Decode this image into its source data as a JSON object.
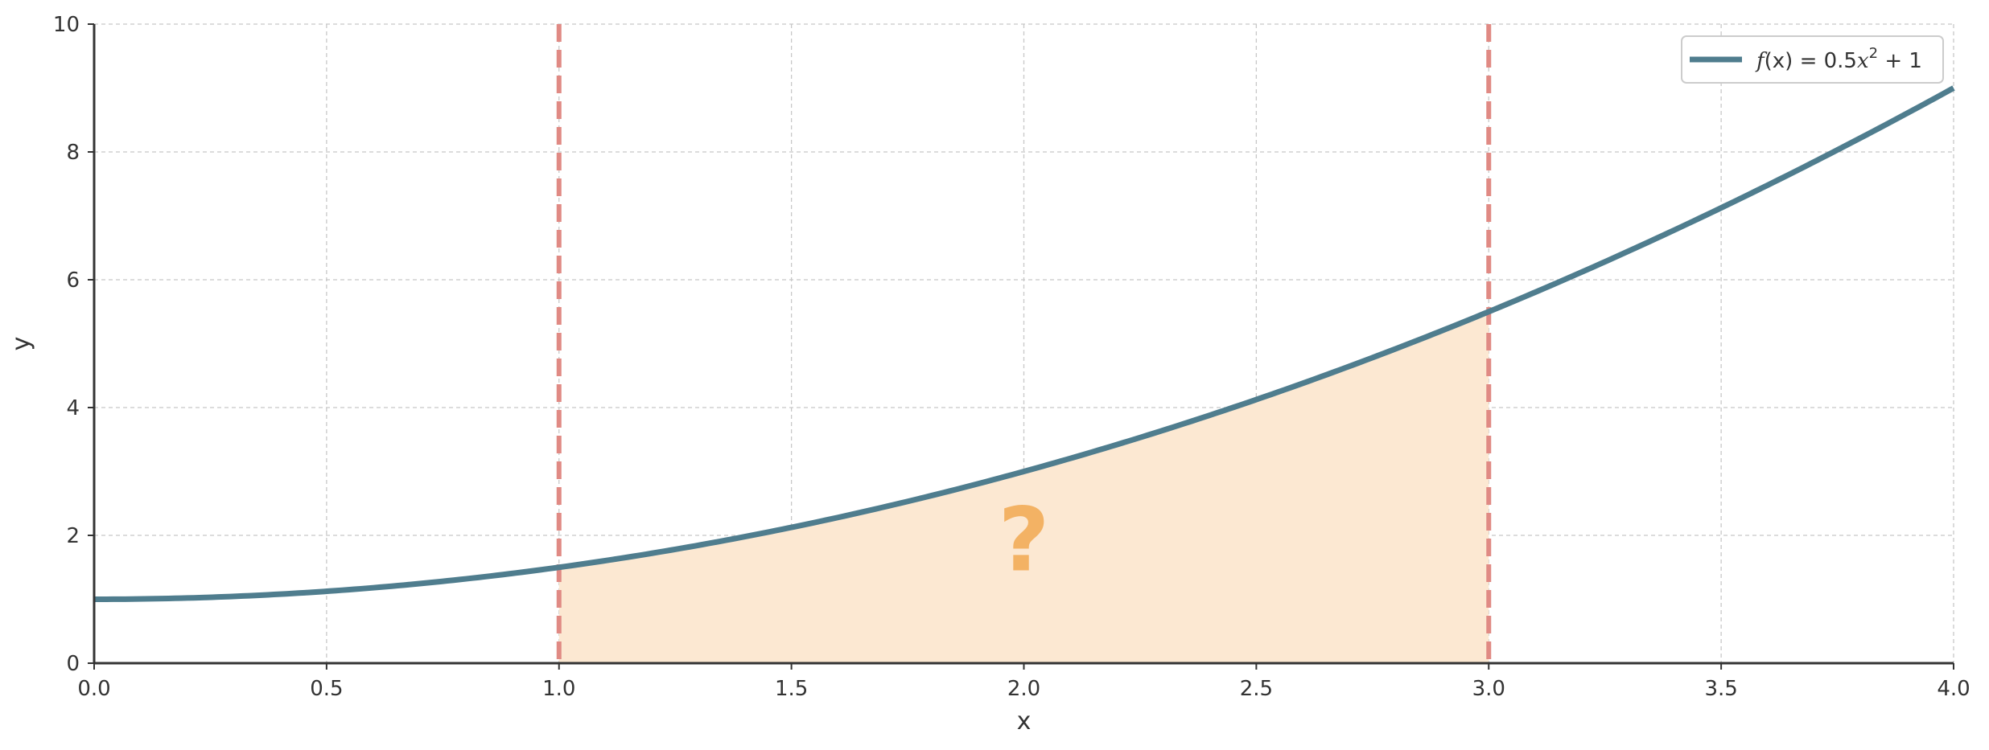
{
  "chart_data": {
    "type": "line",
    "title": "",
    "xlabel": "x",
    "ylabel": "y",
    "xlim": [
      0.0,
      4.0
    ],
    "ylim": [
      0,
      10
    ],
    "x_ticks": [
      "0.0",
      "0.5",
      "1.0",
      "1.5",
      "2.0",
      "2.5",
      "3.0",
      "3.5",
      "4.0"
    ],
    "y_ticks": [
      "0",
      "2",
      "4",
      "6",
      "8",
      "10"
    ],
    "grid": true,
    "legend_position": "top-right",
    "series": [
      {
        "name": "f(x) = 0.5x² + 1",
        "function": "0.5*x^2 + 1",
        "x": [
          0.0,
          0.5,
          1.0,
          1.5,
          2.0,
          2.5,
          3.0,
          3.5,
          4.0
        ],
        "y": [
          1.0,
          1.125,
          1.5,
          2.125,
          3.0,
          4.125,
          5.5,
          7.125,
          9.0
        ],
        "color": "#4f7d8e"
      }
    ],
    "shaded_region": {
      "x_from": 1.0,
      "x_to": 3.0,
      "color": "#fce8d2",
      "label": "?"
    },
    "vertical_lines": [
      {
        "x": 1.0,
        "style": "dashed",
        "color": "#e08a84"
      },
      {
        "x": 3.0,
        "style": "dashed",
        "color": "#e08a84"
      }
    ],
    "colors": {
      "curve": "#4f7d8e",
      "fill": "#fce8d2",
      "bounds": "#e08a84",
      "annotation": "#f3b264"
    }
  },
  "legend": {
    "prefix": "f",
    "arg": "(x)",
    "eq": " = 0.5",
    "var": "x",
    "sup": "2",
    "tail": " + 1"
  }
}
